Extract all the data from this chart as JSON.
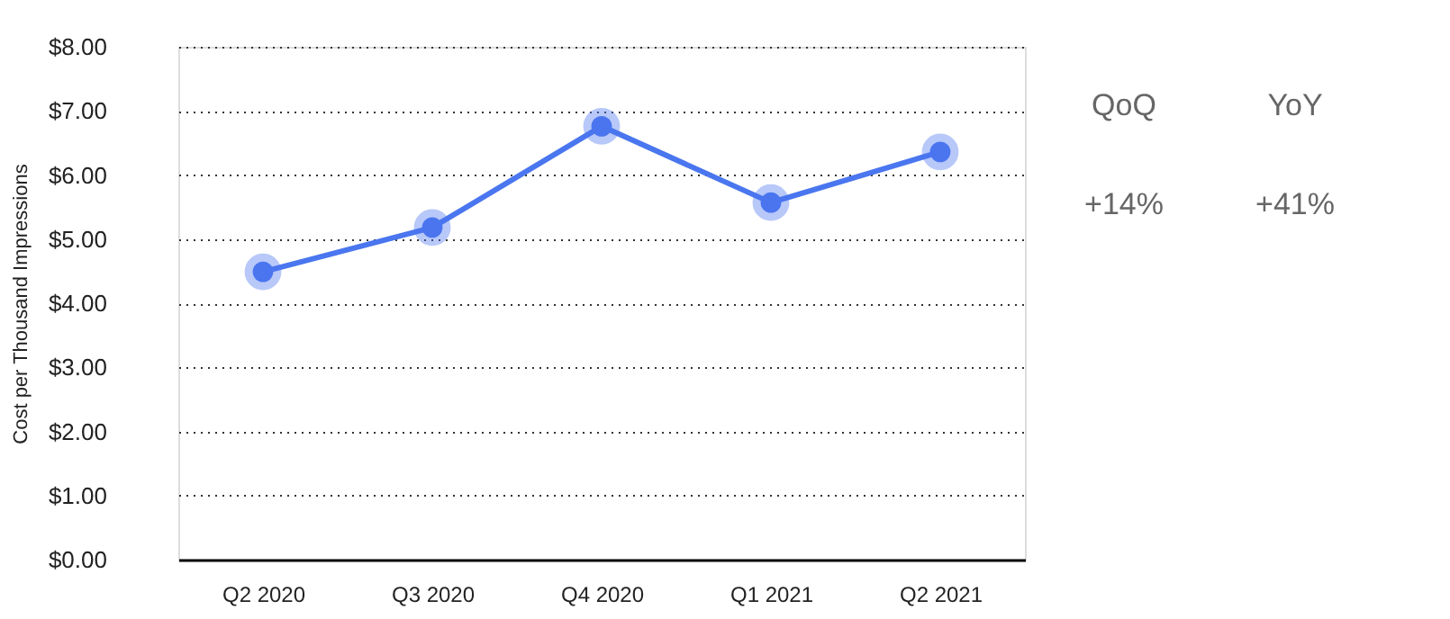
{
  "chart_data": {
    "type": "line",
    "ylabel": "Cost per Thousand Impressions",
    "categories": [
      "Q2 2020",
      "Q3 2020",
      "Q4 2020",
      "Q1 2021",
      "Q2 2021"
    ],
    "series": [
      {
        "color": "#4a76ef",
        "values": [
          4.49,
          5.18,
          6.76,
          5.57,
          6.36
        ]
      }
    ],
    "ylim": [
      0,
      8
    ],
    "yticks": [
      {
        "value": 0,
        "label": "$0.00"
      },
      {
        "value": 1,
        "label": "$1.00"
      },
      {
        "value": 2,
        "label": "$2.00"
      },
      {
        "value": 3,
        "label": "$3.00"
      },
      {
        "value": 4,
        "label": "$4.00"
      },
      {
        "value": 5,
        "label": "$5.00"
      },
      {
        "value": 6,
        "label": "$6.00"
      },
      {
        "value": 7,
        "label": "$7.00"
      },
      {
        "value": 8,
        "label": "$8.00"
      }
    ],
    "grid": "y",
    "marker": "circle",
    "line_style": "solid",
    "annotations": [
      "QoQ",
      "YoY",
      "+14%",
      "+41%"
    ]
  }
}
